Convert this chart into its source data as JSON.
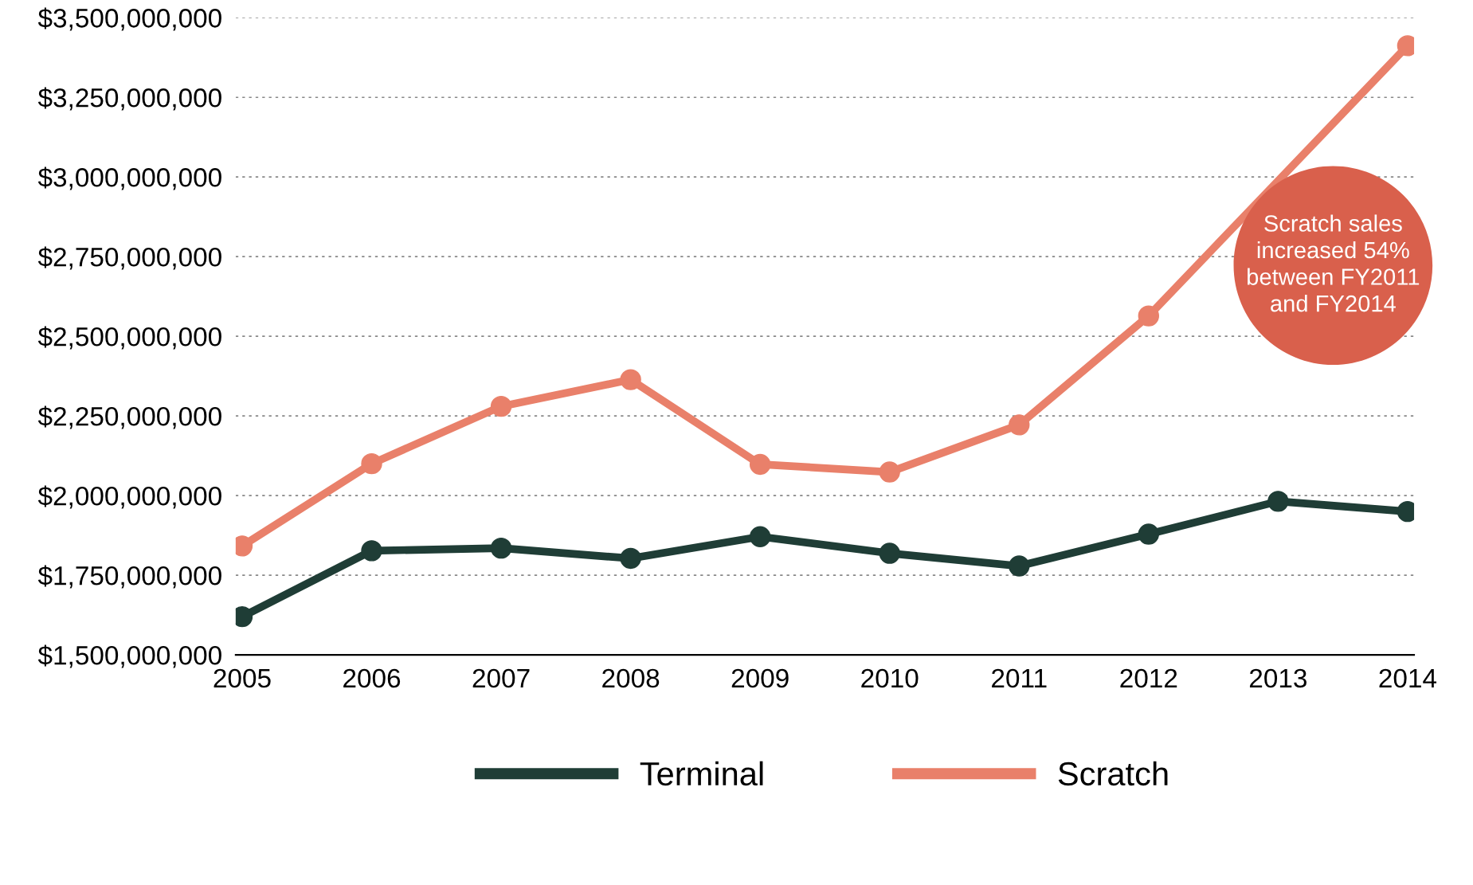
{
  "chart_data": {
    "type": "line",
    "categories": [
      "2005",
      "2006",
      "2007",
      "2008",
      "2009",
      "2010",
      "2011",
      "2012",
      "2013",
      "2014"
    ],
    "series": [
      {
        "name": "Terminal",
        "color": "#1f3d36",
        "values": [
          1620000000,
          1827000000,
          1835000000,
          1803000000,
          1871000000,
          1819000000,
          1779000000,
          1879000000,
          1982000000,
          1950000000
        ]
      },
      {
        "name": "Scratch",
        "color": "#e9806a",
        "values": [
          1842000000,
          2100000000,
          2280000000,
          2364000000,
          2098000000,
          2074000000,
          2222000000,
          2564000000,
          null,
          3412000000
        ]
      }
    ],
    "ylim": [
      1500000000,
      3500000000
    ],
    "yticks": [
      {
        "value": 1500000000,
        "label": "$1,500,000,000"
      },
      {
        "value": 1750000000,
        "label": "$1,750,000,000"
      },
      {
        "value": 2000000000,
        "label": "$2,000,000,000"
      },
      {
        "value": 2250000000,
        "label": "$2,250,000,000"
      },
      {
        "value": 2500000000,
        "label": "$2,500,000,000"
      },
      {
        "value": 2750000000,
        "label": "$2,750,000,000"
      },
      {
        "value": 3000000000,
        "label": "$3,000,000,000"
      },
      {
        "value": 3250000000,
        "label": "$3,250,000,000"
      },
      {
        "value": 3500000000,
        "label": "$3,500,000,000"
      }
    ],
    "grid": "y",
    "legend": "bottom",
    "marker": "circle",
    "line_style": "solid",
    "annotations": [
      "Scratch sales\nincreased 54%\nbetween FY2011\nand FY2014"
    ]
  }
}
